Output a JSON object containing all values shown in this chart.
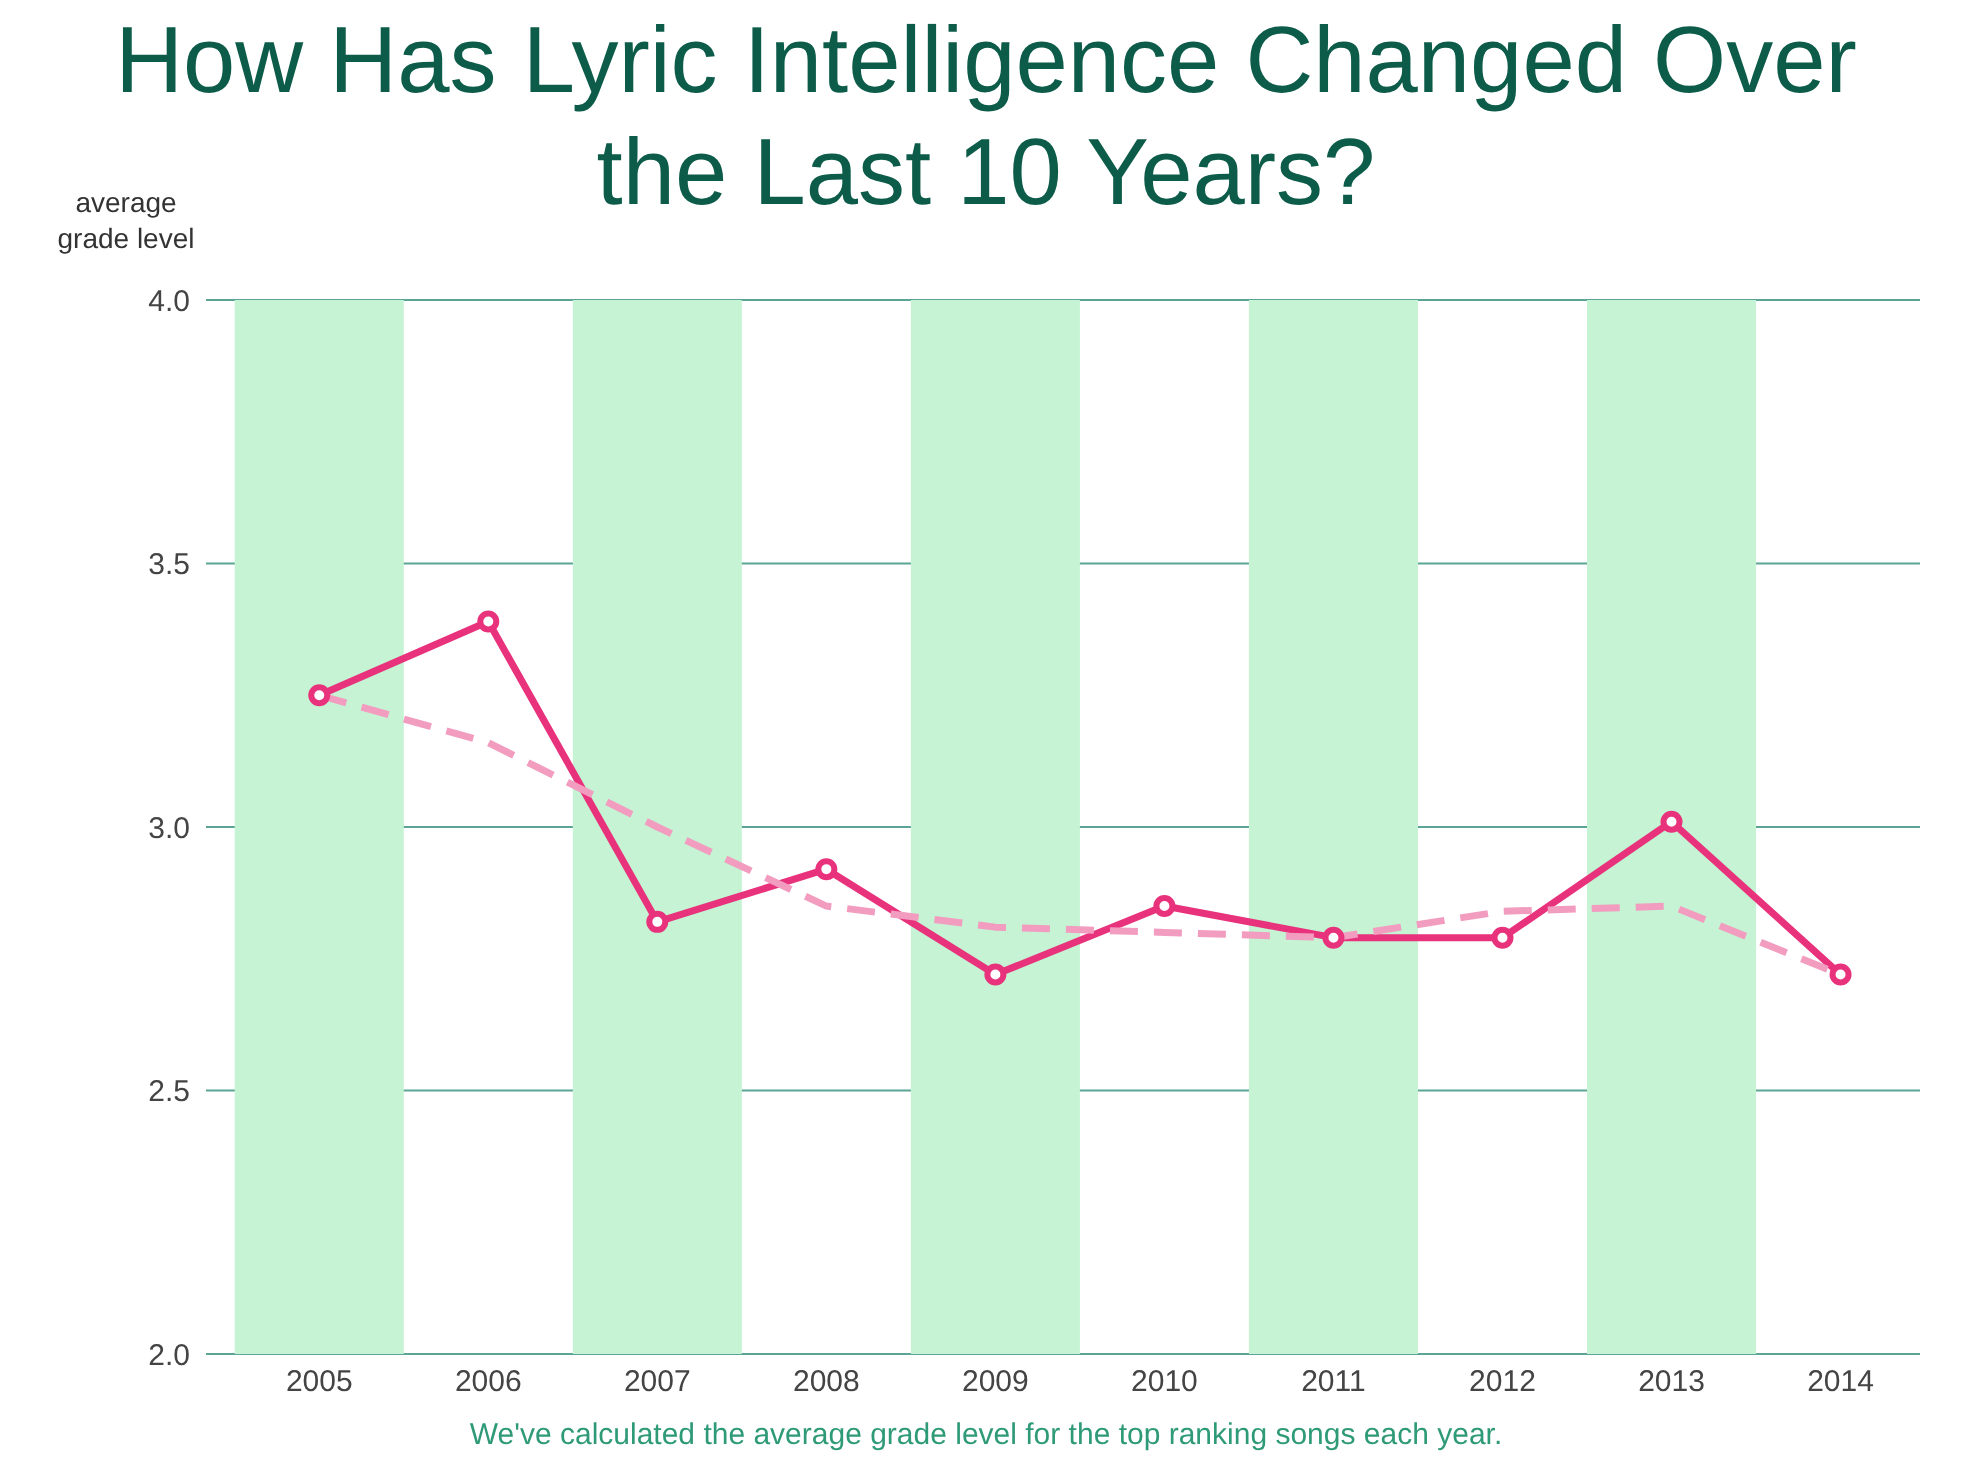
{
  "chart_data": {
    "type": "line",
    "title": "How Has Lyric Intelligence Changed Over the Last 10 Years?",
    "ylabel": "average grade level",
    "annotations": [
      "We've calculated the average grade level for the top ranking songs each year."
    ],
    "categories": [
      "2005",
      "2006",
      "2007",
      "2008",
      "2009",
      "2010",
      "2011",
      "2012",
      "2013",
      "2014"
    ],
    "series": [
      {
        "color": "#e8327c",
        "values": [
          3.25,
          3.39,
          2.82,
          2.92,
          2.72,
          2.85,
          2.79,
          2.79,
          3.01,
          2.72
        ],
        "marker": "circle",
        "line_style": "solid"
      },
      {
        "color": "#f29cc0",
        "values": [
          3.25,
          3.16,
          3.0,
          2.85,
          2.81,
          2.8,
          2.79,
          2.84,
          2.85,
          2.72
        ],
        "marker": "none",
        "line_style": "dashed"
      }
    ],
    "ylim": [
      2.0,
      4.0
    ],
    "yticks": [
      {
        "value": 2,
        "label": "2.0"
      },
      {
        "value": 2.5,
        "label": "2.5"
      },
      {
        "value": 3,
        "label": "3.0"
      },
      {
        "value": 3.5,
        "label": "3.5"
      },
      {
        "value": 4,
        "label": "4.0"
      }
    ],
    "grid": "y",
    "bands": [
      {
        "axis": "x",
        "from": "2005",
        "to": "2005",
        "color": "#c5f3d3"
      },
      {
        "axis": "x",
        "from": "2007",
        "to": "2007",
        "color": "#c5f3d3"
      },
      {
        "axis": "x",
        "from": "2009",
        "to": "2009",
        "color": "#c5f3d3"
      },
      {
        "axis": "x",
        "from": "2011",
        "to": "2011",
        "color": "#c5f3d3"
      },
      {
        "axis": "x",
        "from": "2013",
        "to": "2013",
        "color": "#c5f3d3"
      }
    ]
  }
}
